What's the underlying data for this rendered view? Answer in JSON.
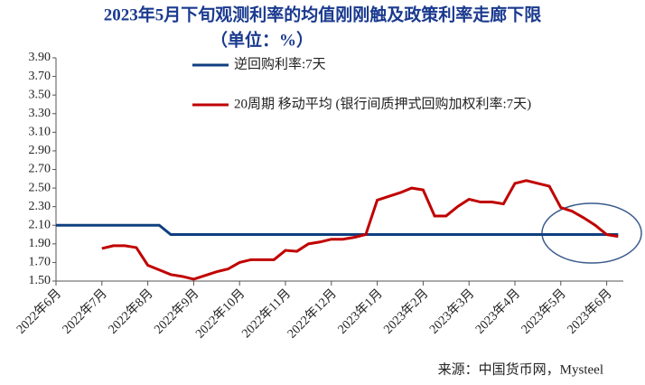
{
  "chart_data": {
    "type": "line",
    "title": "2023年5月下旬观测利率的均值刚刚触及政策利率走廊下限",
    "subtitle": "（单位：%）",
    "source": "来源：中国货币网，Mysteel",
    "categories": [
      "2022年6月",
      null,
      null,
      null,
      "2022年7月",
      null,
      null,
      null,
      "2022年8月",
      null,
      null,
      null,
      "2022年9月",
      null,
      null,
      null,
      "2022年10月",
      null,
      null,
      null,
      "2022年11月",
      null,
      null,
      null,
      "2022年12月",
      null,
      null,
      null,
      "2023年1月",
      null,
      null,
      null,
      "2023年2月",
      null,
      null,
      null,
      "2023年3月",
      null,
      null,
      null,
      "2023年4月",
      null,
      null,
      null,
      "2023年5月",
      null,
      null,
      null,
      "2023年6月",
      null
    ],
    "series": [
      {
        "name": "逆回购利率:7天",
        "color": "#0f3f7f",
        "values": [
          2.1,
          2.1,
          2.1,
          2.1,
          2.1,
          2.1,
          2.1,
          2.1,
          2.1,
          2.1,
          2.0,
          2.0,
          2.0,
          2.0,
          2.0,
          2.0,
          2.0,
          2.0,
          2.0,
          2.0,
          2.0,
          2.0,
          2.0,
          2.0,
          2.0,
          2.0,
          2.0,
          2.0,
          2.0,
          2.0,
          2.0,
          2.0,
          2.0,
          2.0,
          2.0,
          2.0,
          2.0,
          2.0,
          2.0,
          2.0,
          2.0,
          2.0,
          2.0,
          2.0,
          2.0,
          2.0,
          2.0,
          2.0,
          2.0,
          2.0
        ]
      },
      {
        "name": "20周期 移动平均 (银行间质押式回购加权利率:7天)",
        "color": "#c00000",
        "values": [
          null,
          null,
          null,
          null,
          1.85,
          1.88,
          1.88,
          1.86,
          1.67,
          1.62,
          1.57,
          1.55,
          1.52,
          1.56,
          1.6,
          1.63,
          1.7,
          1.73,
          1.73,
          1.73,
          1.83,
          1.82,
          1.9,
          1.92,
          1.95,
          1.95,
          1.97,
          2.0,
          2.37,
          2.41,
          2.45,
          2.5,
          2.48,
          2.2,
          2.2,
          2.3,
          2.38,
          2.35,
          2.35,
          2.33,
          2.55,
          2.58,
          2.55,
          2.52,
          2.29,
          2.25,
          2.18,
          2.1,
          2.0,
          1.98
        ]
      }
    ],
    "ylim": [
      1.5,
      3.9
    ],
    "yticks": [
      {
        "value": 1.5,
        "label": "1.50"
      },
      {
        "value": 1.7,
        "label": "1.70"
      },
      {
        "value": 1.9,
        "label": "1.90"
      },
      {
        "value": 2.1,
        "label": "2.10"
      },
      {
        "value": 2.3,
        "label": "2.30"
      },
      {
        "value": 2.5,
        "label": "2.50"
      },
      {
        "value": 2.7,
        "label": "2.70"
      },
      {
        "value": 2.9,
        "label": "2.90"
      },
      {
        "value": 3.1,
        "label": "3.10"
      },
      {
        "value": 3.3,
        "label": "3.30"
      },
      {
        "value": 3.5,
        "label": "3.50"
      },
      {
        "value": 3.7,
        "label": "3.70"
      },
      {
        "value": 3.9,
        "label": "3.90"
      }
    ]
  }
}
